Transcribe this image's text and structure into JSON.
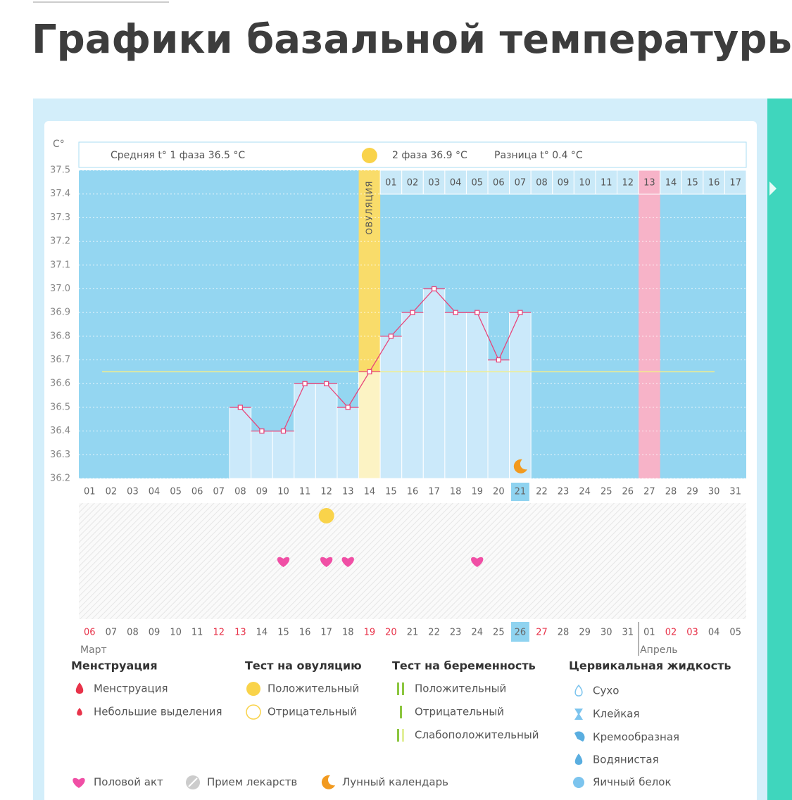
{
  "header": {
    "title": "Графики базальной температуры"
  },
  "chart_data": {
    "type": "line",
    "y_unit": "C°",
    "summary": {
      "phase1": "Средняя t° 1 фаза 36.5 °C",
      "phase2": "2 фаза 36.9 °C",
      "difference": "Разница t° 0.4 °C"
    },
    "ovulation_label": "ОВУЛЯЦИЯ",
    "ovulation_day": 14,
    "highlight_day": 27,
    "today_day": 21,
    "coverline": 36.65,
    "x": [
      1,
      2,
      3,
      4,
      5,
      6,
      7,
      8,
      9,
      10,
      11,
      12,
      13,
      14,
      15,
      16,
      17,
      18,
      19,
      20,
      21,
      22,
      23,
      24,
      25,
      26,
      27,
      28,
      29,
      30,
      31
    ],
    "values": [
      null,
      null,
      null,
      null,
      null,
      null,
      null,
      36.5,
      36.4,
      36.4,
      36.6,
      36.6,
      36.5,
      36.65,
      36.8,
      36.9,
      37.0,
      36.9,
      36.9,
      36.7,
      36.9,
      null,
      null,
      null,
      null,
      null,
      null,
      null,
      null,
      null,
      null
    ],
    "color": "#e8457a",
    "xlim": [
      0.5,
      31.5
    ],
    "xticks": [
      {
        "value": 1,
        "label": "01"
      },
      {
        "value": 2,
        "label": "02"
      },
      {
        "value": 3,
        "label": "03"
      },
      {
        "value": 4,
        "label": "04"
      },
      {
        "value": 5,
        "label": "05"
      },
      {
        "value": 6,
        "label": "06"
      },
      {
        "value": 7,
        "label": "07"
      },
      {
        "value": 8,
        "label": "08"
      },
      {
        "value": 9,
        "label": "09"
      },
      10,
      11,
      12,
      13,
      14,
      15,
      16,
      17,
      18,
      19,
      20,
      21,
      22,
      23,
      24,
      25,
      26,
      27,
      28,
      29,
      30,
      31
    ],
    "phase2_ticks": [
      {
        "value": 15,
        "label": "01"
      },
      {
        "value": 16,
        "label": "02"
      },
      {
        "value": 17,
        "label": "03"
      },
      {
        "value": 18,
        "label": "04"
      },
      {
        "value": 19,
        "label": "05"
      },
      {
        "value": 20,
        "label": "06"
      },
      {
        "value": 21,
        "label": "07"
      },
      {
        "value": 22,
        "label": "08"
      },
      {
        "value": 23,
        "label": "09"
      },
      {
        "value": 24,
        "label": "10"
      },
      {
        "value": 25,
        "label": "11"
      },
      {
        "value": 26,
        "label": "12"
      },
      {
        "value": 27,
        "label": "13"
      },
      {
        "value": 28,
        "label": "14"
      },
      {
        "value": 29,
        "label": "15"
      },
      {
        "value": 30,
        "label": "16"
      },
      {
        "value": 31,
        "label": "17"
      }
    ],
    "ylim": [
      36.2,
      37.5
    ],
    "yticks": [
      36.2,
      36.3,
      36.4,
      36.5,
      36.6,
      36.7,
      36.8,
      36.9,
      {
        "value": 37,
        "label": "37.0"
      },
      37.1,
      37.2,
      37.3,
      37.4,
      37.5
    ],
    "dates": [
      {
        "value": 1,
        "label": "06",
        "red": true
      },
      {
        "value": 2,
        "label": "07",
        "red": false
      },
      {
        "value": 3,
        "label": "08",
        "red": false
      },
      {
        "value": 4,
        "label": "09",
        "red": false
      },
      {
        "value": 5,
        "label": "10",
        "red": false
      },
      {
        "value": 6,
        "label": "11",
        "red": false
      },
      {
        "value": 7,
        "label": "12",
        "red": true
      },
      {
        "value": 8,
        "label": "13",
        "red": true
      },
      {
        "value": 9,
        "label": "14",
        "red": false
      },
      {
        "value": 10,
        "label": "15",
        "red": false
      },
      {
        "value": 11,
        "label": "16",
        "red": false
      },
      {
        "value": 12,
        "label": "17",
        "red": false
      },
      {
        "value": 13,
        "label": "18",
        "red": false
      },
      {
        "value": 14,
        "label": "19",
        "red": true
      },
      {
        "value": 15,
        "label": "20",
        "red": true
      },
      {
        "value": 16,
        "label": "21",
        "red": false
      },
      {
        "value": 17,
        "label": "22",
        "red": false
      },
      {
        "value": 18,
        "label": "23",
        "red": false
      },
      {
        "value": 19,
        "label": "24",
        "red": false
      },
      {
        "value": 20,
        "label": "25",
        "red": false
      },
      {
        "value": 21,
        "label": "26",
        "red": false
      },
      {
        "value": 22,
        "label": "27",
        "red": true
      },
      {
        "value": 23,
        "label": "28",
        "red": false
      },
      {
        "value": 24,
        "label": "29",
        "red": false
      },
      {
        "value": 25,
        "label": "30",
        "red": false
      },
      {
        "value": 26,
        "label": "31",
        "red": false
      },
      {
        "value": 27,
        "label": "01",
        "red": false
      },
      {
        "value": 28,
        "label": "02",
        "red": true
      },
      {
        "value": 29,
        "label": "03",
        "red": true
      },
      {
        "value": 30,
        "label": "04",
        "red": false
      },
      {
        "value": 31,
        "label": "05",
        "red": false
      }
    ],
    "months": [
      {
        "value": 1,
        "label": "Март"
      },
      {
        "value": 27,
        "label": "Апрель"
      }
    ],
    "ovulation_test_days": [
      12
    ],
    "intercourse_days": [
      10,
      12,
      13,
      19
    ],
    "moon_days": [
      21
    ]
  },
  "legend": [
    {
      "title": "Менструация",
      "items": [
        "Менструация",
        "Небольшие выделения"
      ]
    },
    {
      "title": "Тест на овуляцию",
      "items": [
        "Положительный",
        "Отрицательный"
      ]
    },
    {
      "title": "Тест на беременность",
      "items": [
        "Положительный",
        "Отрицательный",
        "Слабоположительный"
      ]
    },
    {
      "title": "Цервикальная жидкость",
      "items": [
        "Сухо",
        "Клейкая",
        "Кремообразная",
        "Водянистая",
        "Яичный белок"
      ]
    }
  ],
  "extras": [
    "Половой акт",
    "Прием лекарств",
    "Лунный календарь"
  ]
}
